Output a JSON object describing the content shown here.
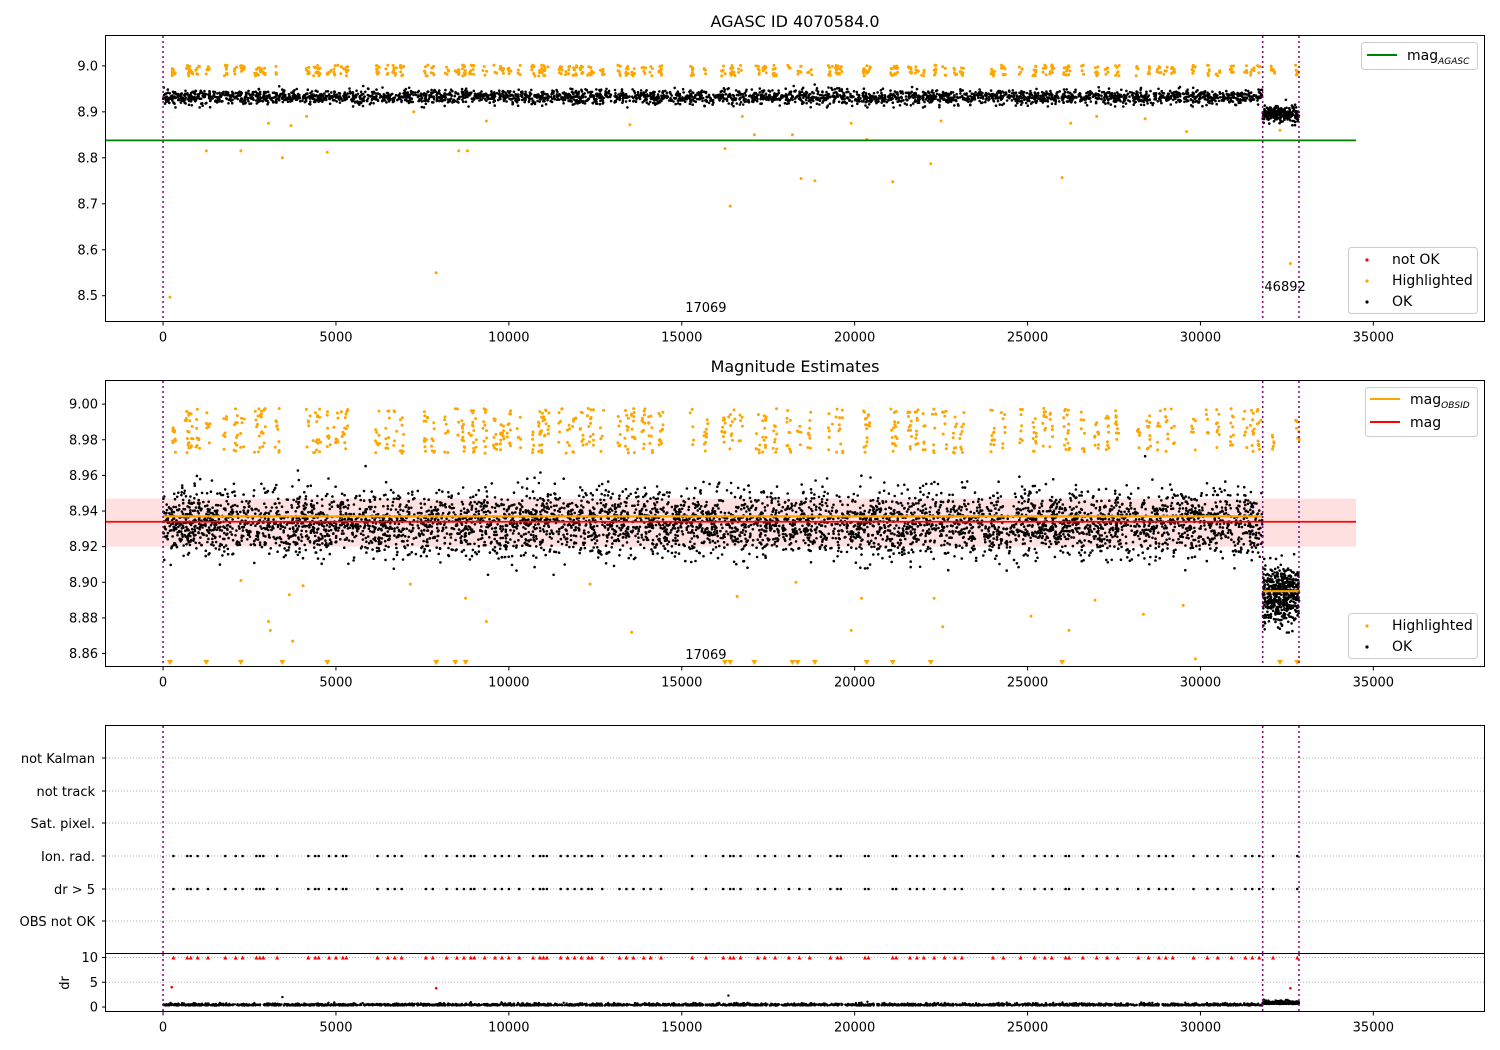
{
  "chart_data": [
    {
      "type": "scatter",
      "title": "AGASC ID 4070584.0",
      "xlim": [
        -1650,
        38200
      ],
      "ylim": [
        8.445,
        9.065
      ],
      "xticks": [
        0,
        5000,
        10000,
        15000,
        20000,
        25000,
        30000,
        35000
      ],
      "yticks": [
        8.5,
        8.6,
        8.7,
        8.8,
        8.9,
        9.0
      ],
      "ytick_labels": [
        "8.5",
        "8.6",
        "8.7",
        "8.8",
        "8.9",
        "9.0"
      ],
      "obsid_boundaries": [
        0,
        31800,
        32850
      ],
      "obsid_labels": [
        {
          "text": "17069",
          "x": 15100,
          "y": 8.465
        },
        {
          "text": "46892",
          "x": 31850,
          "y": 8.51
        }
      ],
      "lines": [
        {
          "name": "mag_AGASC",
          "color": "#008000",
          "y": 8.838,
          "x": [
            -1650,
            34500
          ]
        }
      ],
      "series": [
        {
          "name": "OK",
          "color": "#000000",
          "segments": [
            {
              "x": [
                0,
                31800
              ],
              "mean": 8.932,
              "spread": 0.014
            },
            {
              "x": [
                31800,
                32850
              ],
              "mean": 8.895,
              "spread": 0.015
            }
          ]
        },
        {
          "name": "Highlighted",
          "color": "#ffa500",
          "band": {
            "center": 8.99,
            "spread": 0.012
          },
          "outliers": [
            [
              200,
              8.497
            ],
            [
              1250,
              8.815
            ],
            [
              2250,
              8.815
            ],
            [
              3450,
              8.8
            ],
            [
              4750,
              8.812
            ],
            [
              7900,
              8.55
            ],
            [
              8550,
              8.815
            ],
            [
              8800,
              8.815
            ],
            [
              3050,
              8.875
            ],
            [
              3700,
              8.87
            ],
            [
              4150,
              8.89
            ],
            [
              7250,
              8.9
            ],
            [
              9350,
              8.88
            ],
            [
              13500,
              8.872
            ],
            [
              16250,
              8.82
            ],
            [
              16400,
              8.695
            ],
            [
              16750,
              8.89
            ],
            [
              17100,
              8.85
            ],
            [
              18200,
              8.85
            ],
            [
              18450,
              8.755
            ],
            [
              18850,
              8.75
            ],
            [
              19900,
              8.875
            ],
            [
              20350,
              8.84
            ],
            [
              21100,
              8.748
            ],
            [
              22200,
              8.787
            ],
            [
              22500,
              8.88
            ],
            [
              26000,
              8.757
            ],
            [
              26250,
              8.875
            ],
            [
              27000,
              8.89
            ],
            [
              28400,
              8.885
            ],
            [
              29600,
              8.857
            ],
            [
              32300,
              8.86
            ],
            [
              32600,
              8.57
            ]
          ]
        },
        {
          "name": "not OK",
          "color": "#ff0000",
          "points": []
        }
      ],
      "legends": [
        {
          "position": "upper-right",
          "entries": [
            {
              "label": "mag",
              "sub": "AGASC",
              "kind": "line",
              "color": "#008000"
            }
          ]
        },
        {
          "position": "lower-right",
          "entries": [
            {
              "label": "not OK",
              "kind": "dot",
              "color": "#ff0000"
            },
            {
              "label": "Highlighted",
              "kind": "dot",
              "color": "#ffa500"
            },
            {
              "label": "OK",
              "kind": "dot",
              "color": "#000000"
            }
          ]
        }
      ]
    },
    {
      "type": "scatter",
      "title": "Magnitude Estimates",
      "xlim": [
        -1650,
        38200
      ],
      "ylim": [
        8.853,
        9.013
      ],
      "xticks": [
        0,
        5000,
        10000,
        15000,
        20000,
        25000,
        30000,
        35000
      ],
      "yticks": [
        8.86,
        8.88,
        8.9,
        8.92,
        8.94,
        8.96,
        8.98,
        9.0
      ],
      "ytick_labels": [
        "8.86",
        "8.88",
        "8.90",
        "8.92",
        "8.94",
        "8.96",
        "8.98",
        "9.00"
      ],
      "obsid_boundaries": [
        0,
        31800,
        32850
      ],
      "obsid_labels": [
        {
          "text": "17069",
          "x": 15100,
          "y": 8.857
        }
      ],
      "shaded_band": {
        "color": "#ff0000",
        "alpha": 0.12,
        "y": [
          8.92,
          8.947
        ],
        "x": [
          -1650,
          34500
        ]
      },
      "lines": [
        {
          "name": "mag",
          "color": "#ff0000",
          "y": 8.934,
          "x": [
            -1650,
            34500
          ]
        },
        {
          "name": "mag_OBSID",
          "color": "#ffa500",
          "segments": [
            {
              "x": [
                0,
                31800
              ],
              "y": 8.937
            },
            {
              "x": [
                31800,
                32850
              ],
              "y": 8.895
            }
          ]
        }
      ],
      "series": [
        {
          "name": "OK",
          "color": "#000000",
          "segments": [
            {
              "x": [
                0,
                31800
              ],
              "mean": 8.933,
              "spread": 0.009
            },
            {
              "x": [
                31800,
                32850
              ],
              "mean": 8.893,
              "spread": 0.008
            }
          ]
        },
        {
          "name": "Highlighted",
          "color": "#ffa500",
          "band": {
            "center": 8.985,
            "spread": 0.009
          },
          "outliers": [
            [
              2250,
              8.901
            ],
            [
              3050,
              8.878
            ],
            [
              3100,
              8.873
            ],
            [
              3650,
              8.893
            ],
            [
              3750,
              8.867
            ],
            [
              4050,
              8.898
            ],
            [
              7150,
              8.899
            ],
            [
              8750,
              8.891
            ],
            [
              9350,
              8.878
            ],
            [
              12350,
              8.899
            ],
            [
              13550,
              8.872
            ],
            [
              16600,
              8.892
            ],
            [
              18300,
              8.9
            ],
            [
              19900,
              8.873
            ],
            [
              20200,
              8.891
            ],
            [
              22300,
              8.891
            ],
            [
              22550,
              8.875
            ],
            [
              25100,
              8.881
            ],
            [
              26200,
              8.873
            ],
            [
              26950,
              8.89
            ],
            [
              28350,
              8.882
            ],
            [
              29500,
              8.887
            ],
            [
              29850,
              8.857
            ]
          ],
          "bottom_markers": [
            200,
            1250,
            2250,
            3450,
            4750,
            7900,
            8450,
            8750,
            16250,
            16400,
            17100,
            18200,
            18350,
            18850,
            20350,
            21100,
            22200,
            26000,
            32300,
            32800
          ]
        }
      ],
      "legends": [
        {
          "position": "upper-right",
          "entries": [
            {
              "label": "mag",
              "sub": "OBSID",
              "kind": "line",
              "color": "#ffa500"
            },
            {
              "label": "mag",
              "kind": "line",
              "color": "#ff0000"
            }
          ]
        },
        {
          "position": "lower-right",
          "entries": [
            {
              "label": "Highlighted",
              "kind": "dot",
              "color": "#ffa500"
            },
            {
              "label": "OK",
              "kind": "dot",
              "color": "#000000"
            }
          ]
        }
      ]
    },
    {
      "type": "scatter",
      "title": "",
      "xlim": [
        -1650,
        38200
      ],
      "categories": [
        "OBS not OK",
        "dr > 5",
        "Ion. rad.",
        "Sat. pixel.",
        "not track",
        "not Kalman"
      ],
      "obsid_boundaries": [
        0,
        31800,
        32850
      ],
      "flagged_rows": [
        "dr > 5",
        "Ion. rad."
      ],
      "flag_times": [
        300,
        700,
        800,
        1000,
        1300,
        1800,
        2100,
        2300,
        2700,
        2800,
        2900,
        3300,
        4200,
        4400,
        4500,
        4800,
        5000,
        5200,
        5300,
        6200,
        6500,
        6700,
        6900,
        7600,
        7800,
        8200,
        8500,
        8700,
        8900,
        9000,
        9300,
        9600,
        9800,
        10000,
        10300,
        10700,
        10900,
        11000,
        11100,
        11500,
        11700,
        11900,
        12100,
        12300,
        12400,
        12700,
        13200,
        13400,
        13600,
        13900,
        14100,
        14400,
        15300,
        15700,
        16200,
        16400,
        16500,
        16700,
        17200,
        17400,
        17700,
        18100,
        18400,
        18700,
        19300,
        19500,
        19600,
        20300,
        20400,
        21100,
        21200,
        21600,
        21800,
        22000,
        22300,
        22600,
        22900,
        23100,
        24000,
        24300,
        24800,
        25200,
        25500,
        25700,
        26100,
        26200,
        26600,
        27000,
        27300,
        27600,
        28200,
        28500,
        28800,
        29000,
        29200,
        29800,
        30200,
        30500,
        30900,
        31300,
        31500,
        31700,
        32100,
        32800
      ]
    },
    {
      "type": "scatter",
      "title": "",
      "ylabel": "dr",
      "xlim": [
        -1650,
        38200
      ],
      "ylim": [
        -0.8,
        10.7
      ],
      "yticks": [
        0,
        5,
        10
      ],
      "ytick_labels": [
        "0",
        "5",
        "10"
      ],
      "xticks": [
        0,
        5000,
        10000,
        15000,
        20000,
        25000,
        30000,
        35000
      ],
      "obsid_boundaries": [
        0,
        31800,
        32850
      ],
      "series": [
        {
          "name": "OK",
          "color": "#000000",
          "segments": [
            {
              "x": [
                0,
                31800
              ],
              "mean": 0.3,
              "spread": 0.2
            },
            {
              "x": [
                31800,
                32850
              ],
              "mean": 0.6,
              "spread": 0.3
            }
          ],
          "outliers": [
            [
              3450,
              2.0
            ],
            [
              8900,
              1.0
            ],
            [
              16350,
              2.3
            ]
          ]
        },
        {
          "name": "not OK",
          "color": "#ff0000",
          "clip_value": 10,
          "outliers": [
            [
              250,
              4.0
            ],
            [
              7900,
              3.8
            ],
            [
              32600,
              3.8
            ]
          ]
        }
      ]
    }
  ]
}
